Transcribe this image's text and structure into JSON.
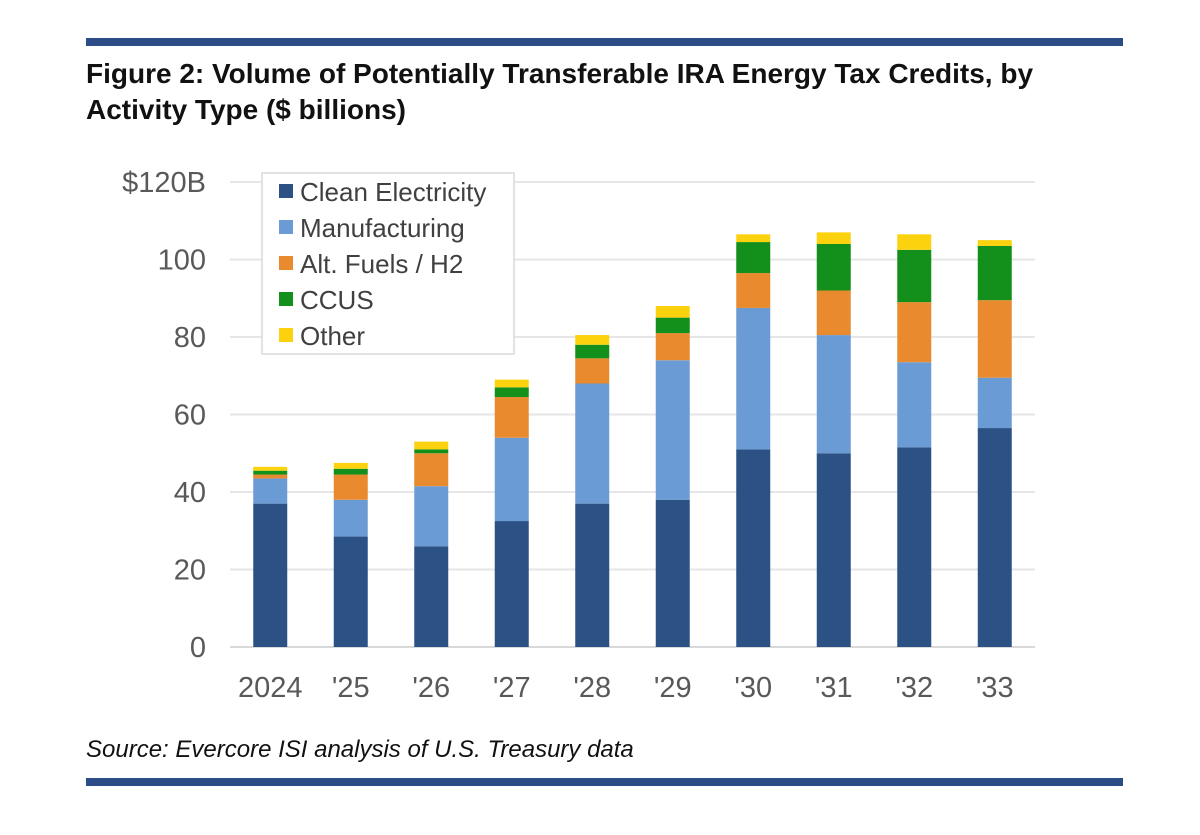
{
  "figure": {
    "title": "Figure 2: Volume of Potentially Transferable IRA Energy Tax Credits, by Activity Type ($ billions)",
    "source": "Source: Evercore ISI analysis of U.S. Treasury data"
  },
  "colors": {
    "rule": "#2b4c86",
    "gridline": "#e6e6e6",
    "axis": "#d9d9d9"
  },
  "chart_data": {
    "type": "bar",
    "stacked": true,
    "categories": [
      "2024",
      "'25",
      "'26",
      "'27",
      "'28",
      "'29",
      "'30",
      "'31",
      "'32",
      "'33"
    ],
    "y_tick_labels": [
      "0",
      "20",
      "40",
      "60",
      "80",
      "100",
      "$120B"
    ],
    "ylim": [
      0,
      120
    ],
    "grid": true,
    "legend_position": "top-left",
    "series": [
      {
        "name": "Clean Electricity",
        "color": "#2c5185",
        "values": [
          37,
          28.5,
          26,
          32.5,
          37,
          38,
          51,
          50,
          51.5,
          56.5
        ]
      },
      {
        "name": "Manufacturing",
        "color": "#6b9bd4",
        "values": [
          6.5,
          9.5,
          15.5,
          21.5,
          31,
          36,
          36.5,
          30.5,
          22,
          13
        ]
      },
      {
        "name": "Alt. Fuels / H2",
        "color": "#e98a2e",
        "values": [
          1,
          6.5,
          8.5,
          10.5,
          6.5,
          7,
          9,
          11.5,
          15.5,
          20
        ]
      },
      {
        "name": "CCUS",
        "color": "#138f1b",
        "values": [
          1,
          1.5,
          1,
          2.5,
          3.5,
          4,
          8,
          12,
          13.5,
          14
        ]
      },
      {
        "name": "Other",
        "color": "#fcd20e",
        "values": [
          1,
          1.5,
          2,
          2,
          2.5,
          3,
          2,
          3,
          4,
          1.5
        ]
      }
    ]
  }
}
